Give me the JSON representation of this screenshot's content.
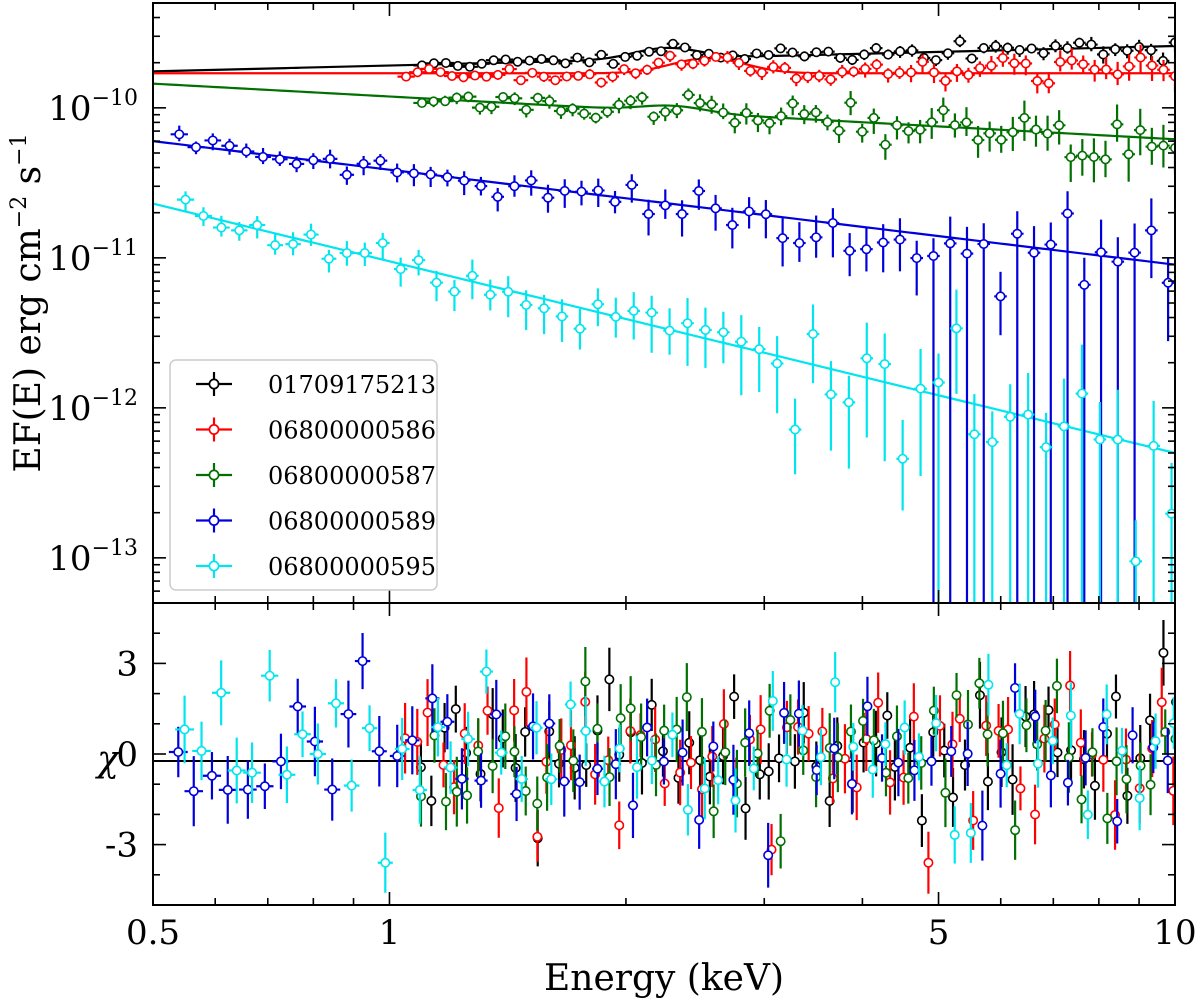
{
  "chart_data": [
    {
      "type": "scatter",
      "panel": "spectrum",
      "xscale": "log",
      "yscale": "log",
      "xlim": [
        0.5,
        10
      ],
      "ylim": [
        5e-14,
        5e-10
      ],
      "xlabel": "Energy (keV)",
      "ylabel": "EF(E) erg cm-2 s-1",
      "ylabel_parts": {
        "main": "EF(E) erg cm",
        "exp1": "−2",
        "mid": " s",
        "exp2": "−1"
      },
      "yticks": [
        {
          "value": 1e-13,
          "base": "10",
          "exp": "−13"
        },
        {
          "value": 1e-12,
          "base": "10",
          "exp": "−12"
        },
        {
          "value": 1e-11,
          "base": "10",
          "exp": "−11"
        },
        {
          "value": 1e-10,
          "base": "10",
          "exp": "−10"
        }
      ],
      "legend": {
        "position": "lower-left"
      },
      "series": [
        {
          "name": "01709175213",
          "color": "#000000",
          "xmin": 1.1,
          "xmax": 10,
          "model": [
            [
              0.5,
              1.75e-10
            ],
            [
              10,
              2.6e-10
            ]
          ],
          "line": {
            "start": 0.5,
            "norm": 1.75e-10,
            "slope": 0.13,
            "features": [
              {
                "center": 2.25,
                "amp": 0.18,
                "width": 0.04
              }
            ]
          },
          "points": {
            "start": 1.1,
            "end": 10,
            "count": 64,
            "scatter": 0.04,
            "growth": 1.5,
            "seed": 11
          }
        },
        {
          "name": "06800000586",
          "color": "#ff0000",
          "xmin": 1.05,
          "xmax": 10,
          "model": [
            [
              0.5,
              1.7e-10
            ],
            [
              10,
              1.7e-10
            ]
          ],
          "line": {
            "start": 0.5,
            "norm": 1.7e-10,
            "slope": 0.0,
            "features": [
              {
                "center": 2.55,
                "amp": 0.26,
                "width": 0.045
              }
            ]
          },
          "points": {
            "start": 1.05,
            "end": 10,
            "count": 68,
            "scatter": 0.05,
            "growth": 2.4,
            "seed": 23
          }
        },
        {
          "name": "06800000587",
          "color": "#007000",
          "xmin": 1.1,
          "xmax": 10,
          "model": [
            [
              0.5,
              1.45e-10
            ],
            [
              10,
              6.2e-11
            ]
          ],
          "line": {
            "start": 0.5,
            "norm": 1.45e-10,
            "slope": -0.285,
            "features": [
              {
                "center": 2.3,
                "amp": 0.1,
                "width": 0.04
              }
            ]
          },
          "points": {
            "start": 1.1,
            "end": 10,
            "count": 66,
            "scatter": 0.07,
            "growth": 3.0,
            "seed": 37
          }
        },
        {
          "name": "06800000589",
          "color": "#0000dd",
          "xmin": 0.5,
          "xmax": 10,
          "model": [
            [
              0.5,
              6e-11
            ],
            [
              10,
              9e-12
            ]
          ],
          "line": {
            "start": 0.5,
            "norm": 6e-11,
            "slope": -0.633,
            "features": []
          },
          "points": {
            "start": 0.54,
            "end": 9.8,
            "count": 60,
            "scatter": 0.1,
            "growth": 4.0,
            "seed": 41
          }
        },
        {
          "name": "06800000595",
          "color": "#00e5ee",
          "xmin": 0.5,
          "xmax": 10,
          "model": [
            [
              0.5,
              2.3e-11
            ],
            [
              10,
              5e-13
            ]
          ],
          "line": {
            "start": 0.5,
            "norm": 2.3e-11,
            "slope": -1.278,
            "features": []
          },
          "points": {
            "start": 0.55,
            "end": 9.9,
            "count": 56,
            "scatter": 0.14,
            "growth": 5.5,
            "seed": 53
          }
        }
      ]
    },
    {
      "type": "scatter",
      "panel": "residuals",
      "xscale": "log",
      "xlim": [
        0.5,
        10
      ],
      "ylim": [
        -5,
        5
      ],
      "ylabel": "χ",
      "xlabel": "Energy (keV)",
      "reference_line": 0,
      "yticks": [
        {
          "value": 3,
          "label": "3"
        },
        {
          "value": 0,
          "label": "0"
        },
        {
          "value": -3,
          "label": "-3"
        }
      ],
      "xticks": [
        {
          "value": 0.5,
          "label": "0.5"
        },
        {
          "value": 1,
          "label": "1"
        },
        {
          "value": 5,
          "label": "5"
        },
        {
          "value": 10,
          "label": "10"
        }
      ],
      "series": [
        {
          "name": "01709175213",
          "color": "#000000",
          "xmin": 1.1,
          "xmax": 10
        },
        {
          "name": "06800000586",
          "color": "#ff0000",
          "xmin": 1.05,
          "xmax": 10
        },
        {
          "name": "06800000587",
          "color": "#007000",
          "xmin": 1.1,
          "xmax": 10
        },
        {
          "name": "06800000589",
          "color": "#0000dd",
          "xmin": 0.54,
          "xmax": 9.8
        },
        {
          "name": "06800000595",
          "color": "#00e5ee",
          "xmin": 0.55,
          "xmax": 9.9
        }
      ],
      "residual_spread": 1.2,
      "residual_error": 0.9
    }
  ]
}
